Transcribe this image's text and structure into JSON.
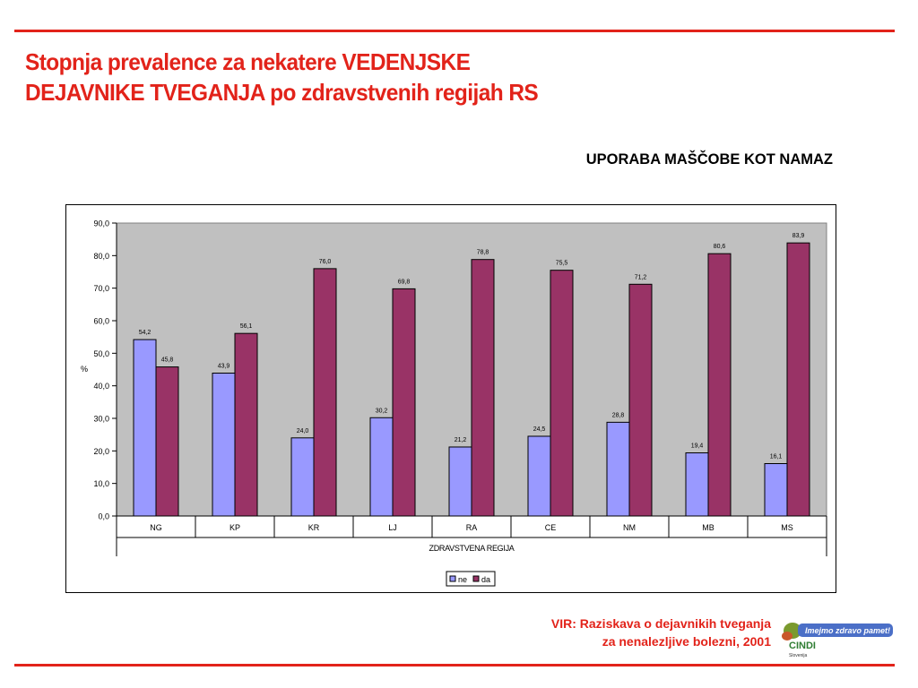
{
  "slide": {
    "title_line1": "Stopnja prevalence za nekatere VEDENJSKE",
    "title_line2": "DEJAVNIKE TVEGANJA po zdravstvenih regijah RS",
    "subtitle": "UPORABA MAŠČOBE KOT NAMAZ",
    "source_line1": "VIR: Raziskava o dejavnikih tveganja",
    "source_line2": "za nenalezljive bolezni, 2001",
    "logo_slogan": "Imejmo zdravo pamet!",
    "logo_name": "CINDI",
    "logo_country": "Slovenija"
  },
  "colors": {
    "accent": "#e2231a",
    "plot_background": "#c0c0c0",
    "series_ne": "#9999ff",
    "series_da": "#993366"
  },
  "chart_data": {
    "type": "bar",
    "title": "",
    "xlabel": "ZDRAVSTVENA REGIJA",
    "ylabel": "%",
    "ylim": [
      0,
      90
    ],
    "yticks": [
      "0,0",
      "10,0",
      "20,0",
      "30,0",
      "40,0",
      "50,0",
      "60,0",
      "70,0",
      "80,0",
      "90,0"
    ],
    "categories": [
      "NG",
      "KP",
      "KR",
      "LJ",
      "RA",
      "CE",
      "NM",
      "MB",
      "MS"
    ],
    "series": [
      {
        "name": "ne",
        "values": [
          54.2,
          43.9,
          24.0,
          30.2,
          21.2,
          24.5,
          28.8,
          19.4,
          16.1
        ],
        "labels": [
          "54,2",
          "43,9",
          "24,0",
          "30,2",
          "21,2",
          "24,5",
          "28,8",
          "19,4",
          "16,1"
        ]
      },
      {
        "name": "da",
        "values": [
          45.8,
          56.1,
          76.0,
          69.8,
          78.8,
          75.5,
          71.2,
          80.6,
          83.9
        ],
        "labels": [
          "45,8",
          "56,1",
          "76,0",
          "69,8",
          "78,8",
          "75,5",
          "71,2",
          "80,6",
          "83,9"
        ]
      }
    ],
    "grid": false,
    "legend": "bottom-center"
  }
}
